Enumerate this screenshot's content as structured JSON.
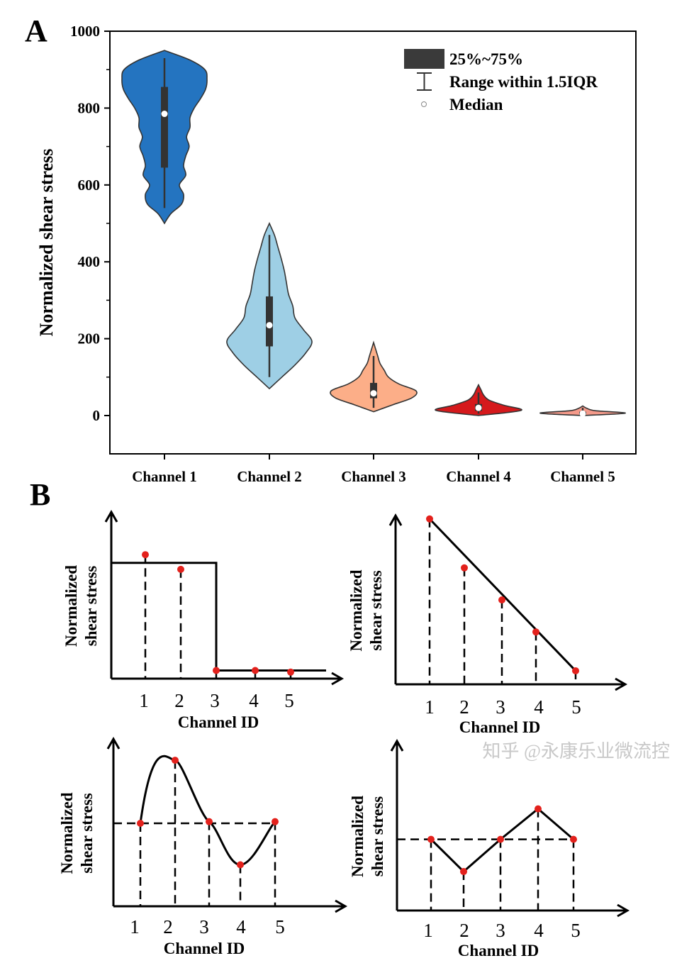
{
  "panel_labels": {
    "a": "A",
    "b": "B"
  },
  "chart_data": [
    {
      "type": "violin",
      "panel": "A",
      "ylabel": "Normalized shear stress",
      "xlabel": "",
      "ylim": [
        -100,
        1000
      ],
      "yticks": [
        "0",
        "200",
        "400",
        "600",
        "800",
        "1000"
      ],
      "categories": [
        "Channel 1",
        "Channel 2",
        "Channel 3",
        "Channel 4",
        "Channel 5"
      ],
      "colors": [
        "#2474C0",
        "#9ECFE5",
        "#FCAE88",
        "#D5191C",
        "#F49A8A"
      ],
      "series": [
        {
          "min": 500,
          "max": 950,
          "whisker": [
            540,
            930
          ],
          "q1": 645,
          "q3": 855,
          "median": 785,
          "density": [
            0,
            0.15,
            0.4,
            0.45,
            0.35,
            0.5,
            0.45,
            0.5,
            0.58,
            0.52,
            0.6,
            0.6,
            0.7,
            0.85,
            0.97,
            1.0,
            0.95,
            0.6,
            0
          ]
        },
        {
          "min": 70,
          "max": 500,
          "whisker": [
            100,
            470
          ],
          "q1": 180,
          "q3": 310,
          "median": 235,
          "density": [
            0,
            0.3,
            0.6,
            0.85,
            1.0,
            0.8,
            0.6,
            0.55,
            0.45,
            0.4,
            0.35,
            0.28,
            0.2,
            0.12,
            0
          ]
        },
        {
          "min": 10,
          "max": 190,
          "whisker": [
            20,
            155
          ],
          "q1": 45,
          "q3": 85,
          "median": 58,
          "density": [
            0,
            0.45,
            0.9,
            1.0,
            0.6,
            0.35,
            0.25,
            0.15,
            0.1,
            0.05,
            0
          ]
        },
        {
          "min": 0,
          "max": 80,
          "whisker": [
            5,
            60
          ],
          "q1": 12,
          "q3": 30,
          "median": 20,
          "density": [
            0,
            1,
            0.6,
            0.25,
            0.12,
            0.06,
            0
          ]
        },
        {
          "min": 0,
          "max": 25,
          "whisker": [
            2,
            20
          ],
          "q1": 3,
          "q3": 10,
          "median": 5,
          "density": [
            0,
            1,
            0.3,
            0.1,
            0
          ]
        }
      ],
      "legend": {
        "position": "top-right",
        "items": [
          "25%~75%",
          "Range within 1.5IQR",
          "Median"
        ]
      }
    },
    {
      "type": "line",
      "panel": "B-1",
      "ylabel_lines": [
        "Normalized",
        "shear stress"
      ],
      "xlabel": "Channel ID",
      "x": [
        "1",
        "2",
        "3",
        "4",
        "5"
      ],
      "values": [
        0.76,
        0.67,
        0.05,
        0.05,
        0.04
      ],
      "shape": "step",
      "reference_level": 0.71
    },
    {
      "type": "line",
      "panel": "B-2",
      "ylabel_lines": [
        "Normalized",
        "shear stress"
      ],
      "xlabel": "Channel ID",
      "x": [
        "1",
        "2",
        "3",
        "4",
        "5"
      ],
      "values": [
        0.98,
        0.69,
        0.5,
        0.31,
        0.08
      ],
      "shape": "linear-decrease"
    },
    {
      "type": "line",
      "panel": "B-3",
      "ylabel_lines": [
        "Normalized",
        "shear stress"
      ],
      "xlabel": "Channel ID",
      "x": [
        "1",
        "2",
        "3",
        "4",
        "5"
      ],
      "values": [
        0.5,
        0.88,
        0.51,
        0.25,
        0.51
      ],
      "shape": "sine",
      "reference_level": 0.5
    },
    {
      "type": "line",
      "panel": "B-4",
      "ylabel_lines": [
        "Normalized",
        "shear stress"
      ],
      "xlabel": "Channel ID",
      "x": [
        "1",
        "2",
        "3",
        "4",
        "5"
      ],
      "values": [
        0.42,
        0.23,
        0.42,
        0.6,
        0.42
      ],
      "shape": "zigzag",
      "reference_level": 0.42
    }
  ],
  "watermark": "知乎 @永康乐业微流控"
}
